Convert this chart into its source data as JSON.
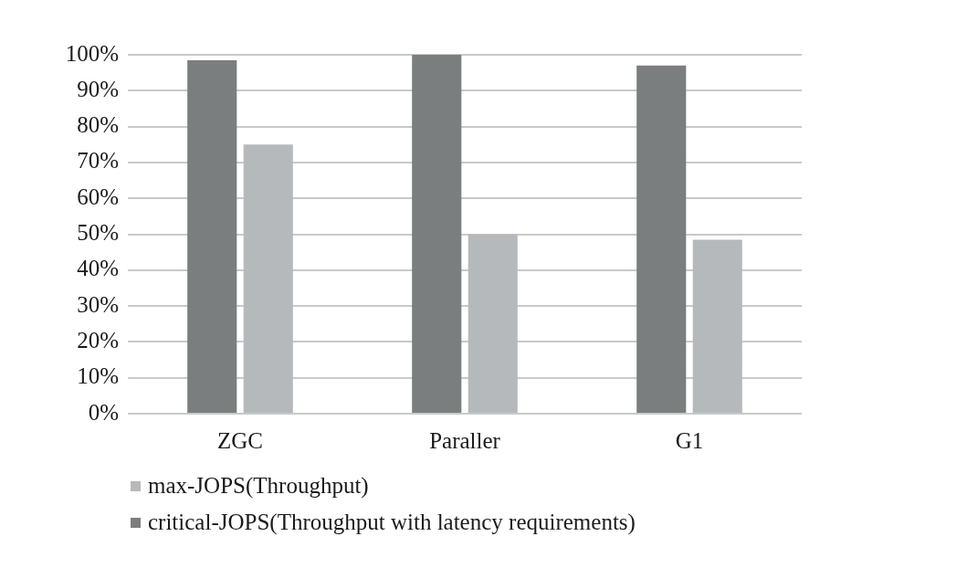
{
  "chart_data": {
    "type": "bar",
    "categories": [
      "ZGC",
      "Paraller",
      "G1"
    ],
    "series": [
      {
        "name": "critical-JOPS(Throughput with latency requirements)",
        "color": "#7b7e7e",
        "values": [
          98.5,
          100,
          97
        ]
      },
      {
        "name": "max-JOPS(Throughput)",
        "color": "#b6b9bc",
        "values": [
          75,
          50,
          48.5
        ]
      }
    ],
    "ylim": [
      0,
      100
    ],
    "yticks": [
      {
        "value": 0,
        "label": "0%"
      },
      {
        "value": 10,
        "label": "10%"
      },
      {
        "value": 20,
        "label": "20%"
      },
      {
        "value": 30,
        "label": "30%"
      },
      {
        "value": 40,
        "label": "40%"
      },
      {
        "value": 50,
        "label": "50%"
      },
      {
        "value": 60,
        "label": "60%"
      },
      {
        "value": 70,
        "label": "70%"
      },
      {
        "value": 80,
        "label": "80%"
      },
      {
        "value": 90,
        "label": "90%"
      },
      {
        "value": 100,
        "label": "100%"
      }
    ],
    "grid": "y",
    "legend": "bottom left"
  }
}
